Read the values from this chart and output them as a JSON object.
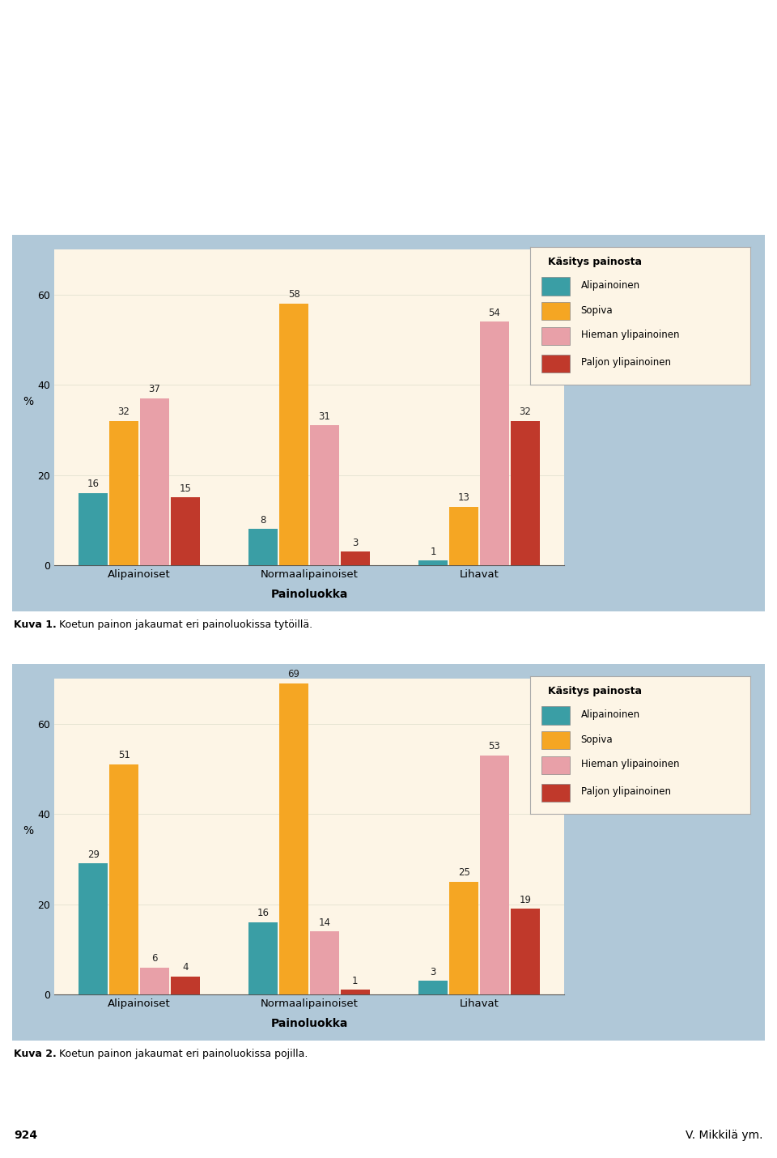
{
  "chart1": {
    "groups": [
      "Alipainoiset",
      "Normaalipainoiset",
      "Lihavat"
    ],
    "series_labels": [
      "Alipainoinen",
      "Sopiva",
      "Hieman ylipainoinen",
      "Paljon ylipainoinen"
    ],
    "colors": [
      "#3a9ea5",
      "#f5a623",
      "#e8a0a8",
      "#c0392b"
    ],
    "values": [
      [
        16,
        32,
        37,
        15
      ],
      [
        8,
        58,
        31,
        3
      ],
      [
        1,
        13,
        54,
        32
      ]
    ]
  },
  "chart2": {
    "groups": [
      "Alipainoiset",
      "Normaalipainoiset",
      "Lihavat"
    ],
    "series_labels": [
      "Alipainoinen",
      "Sopiva",
      "Hieman ylipainoinen",
      "Paljon ylipainoinen"
    ],
    "colors": [
      "#3a9ea5",
      "#f5a623",
      "#e8a0a8",
      "#c0392b"
    ],
    "values": [
      [
        29,
        51,
        6,
        4
      ],
      [
        16,
        69,
        14,
        1
      ],
      [
        3,
        25,
        53,
        19
      ]
    ]
  },
  "xlabel": "Painoluokka",
  "ylabel": "%",
  "legend_title": "Käsitys painosta",
  "outer_bg": "#b0c8d8",
  "inner_bg": "#fdf5e6",
  "legend_bg": "#fdf5e6",
  "ylim": [
    0,
    70
  ],
  "yticks": [
    0,
    20,
    40,
    60
  ],
  "bar_width": 0.18,
  "caption1_bold": "Kuva 1.",
  "caption1_rest": " Koetun painon jakaumat eri painoluokissa tytöillä.",
  "caption2_bold": "Kuva 2.",
  "caption2_rest": " Koetun painon jakaumat eri painoluokissa pojilla.",
  "page_number": "924",
  "page_author": "V. Mikkilä ym."
}
